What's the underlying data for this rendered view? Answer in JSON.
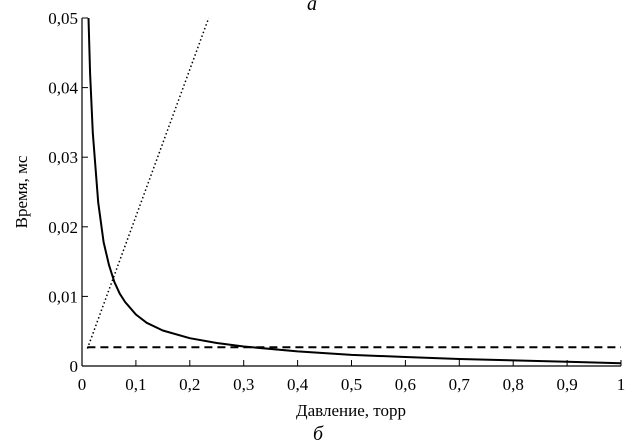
{
  "panel_top_label": "а",
  "panel_bottom_label": "б",
  "chart_data": {
    "type": "line",
    "xlabel": "Давление, торр",
    "ylabel": "Время, мс",
    "xlim": [
      0,
      1
    ],
    "ylim": [
      0,
      0.05
    ],
    "x_ticks": [
      {
        "value": 0,
        "label": "0"
      },
      {
        "value": 0.1,
        "label": "0,1"
      },
      {
        "value": 0.2,
        "label": "0,2"
      },
      {
        "value": 0.3,
        "label": "0,3"
      },
      {
        "value": 0.4,
        "label": "0,4"
      },
      {
        "value": 0.5,
        "label": "0,5"
      },
      {
        "value": 0.6,
        "label": "0,6"
      },
      {
        "value": 0.7,
        "label": "0,7"
      },
      {
        "value": 0.8,
        "label": "0,8"
      },
      {
        "value": 0.9,
        "label": "0,9"
      },
      {
        "value": 1.0,
        "label": "1"
      }
    ],
    "y_ticks": [
      {
        "value": 0,
        "label": "0"
      },
      {
        "value": 0.01,
        "label": "0,01"
      },
      {
        "value": 0.02,
        "label": "0,02"
      },
      {
        "value": 0.03,
        "label": "0,03"
      },
      {
        "value": 0.04,
        "label": "0,04"
      },
      {
        "value": 0.05,
        "label": "0,05"
      }
    ],
    "grid": false,
    "series": [
      {
        "style": "solid",
        "x": [
          0.012,
          0.015,
          0.02,
          0.03,
          0.04,
          0.05,
          0.06,
          0.07,
          0.08,
          0.1,
          0.12,
          0.15,
          0.2,
          0.25,
          0.3,
          0.4,
          0.5,
          0.6,
          0.7,
          0.8,
          0.9,
          1.0
        ],
        "y": [
          0.05,
          0.042,
          0.0335,
          0.0235,
          0.0178,
          0.0145,
          0.0121,
          0.0104,
          0.0092,
          0.0074,
          0.0062,
          0.0051,
          0.004,
          0.0033,
          0.0028,
          0.0021,
          0.0016,
          0.0013,
          0.001,
          0.0008,
          0.0006,
          0.0004
        ]
      },
      {
        "style": "dotted",
        "x": [
          0.01,
          0.235
        ],
        "y": [
          0.0025,
          0.05
        ]
      },
      {
        "style": "dashed",
        "x": [
          0.01,
          1.0
        ],
        "y": [
          0.0027,
          0.0027
        ]
      }
    ]
  }
}
